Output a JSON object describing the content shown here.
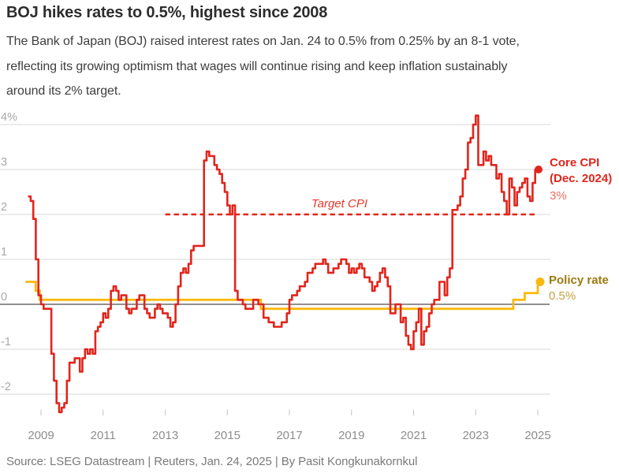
{
  "header": {
    "title": "BOJ hikes rates to 0.5%, highest since 2008",
    "subtitle_lines": [
      "The Bank of Japan (BOJ) raised interest rates on Jan. 24 to 0.5% from 0.25% by an 8-1 vote,",
      "reflecting its growing optimism that wages will continue rising and keep inflation sustainably",
      "around its 2% target."
    ]
  },
  "footer": {
    "source": "Source: LSEG Datastream | Reuters, Jan. 24, 2025 | By Pasit Kongkunakornkul"
  },
  "chart_data": {
    "type": "line",
    "subtype": "step",
    "x_ticks": [
      2009,
      2011,
      2013,
      2015,
      2017,
      2019,
      2021,
      2023,
      2025
    ],
    "y_ticks": [
      {
        "label": "4%",
        "value": 4
      },
      {
        "label": "3",
        "value": 3
      },
      {
        "label": "2",
        "value": 2
      },
      {
        "label": "1",
        "value": 1
      },
      {
        "label": "0",
        "value": 0
      },
      {
        "label": "-1",
        "value": -1
      },
      {
        "label": "-2",
        "value": -2
      }
    ],
    "ylim": [
      -2.6,
      4.4
    ],
    "xlim": [
      2008.4,
      2025.3
    ],
    "grid": "horizontal",
    "legend_position": "right-of-line-ends",
    "target_line": {
      "label": "Target CPI",
      "value": 2,
      "x_start": 2013.0,
      "x_end": 2025.0
    },
    "series": [
      {
        "name": "Core CPI",
        "color": "#e1251c",
        "start_year": 2008,
        "start_month": 8,
        "interval": "monthly",
        "unit": "% yoy",
        "values": [
          2.4,
          2.3,
          1.9,
          1.0,
          0.2,
          0.0,
          -0.1,
          -0.1,
          -0.1,
          -1.1,
          -1.7,
          -2.2,
          -2.4,
          -2.3,
          -2.2,
          -1.7,
          -1.3,
          -1.3,
          -1.2,
          -1.2,
          -1.5,
          -1.2,
          -1.0,
          -1.1,
          -1.0,
          -1.1,
          -0.6,
          -0.5,
          -0.4,
          -0.2,
          -0.3,
          -0.1,
          0.3,
          0.4,
          0.3,
          0.1,
          0.2,
          0.2,
          -0.1,
          -0.2,
          -0.1,
          -0.1,
          0.1,
          0.2,
          0.2,
          -0.1,
          -0.2,
          -0.3,
          -0.3,
          -0.1,
          0.0,
          -0.1,
          -0.2,
          -0.2,
          -0.3,
          -0.5,
          -0.4,
          0.0,
          0.4,
          0.7,
          0.8,
          0.7,
          0.9,
          1.2,
          1.3,
          1.3,
          1.3,
          1.3,
          3.2,
          3.4,
          3.3,
          3.3,
          3.1,
          3.0,
          2.9,
          2.7,
          2.5,
          2.2,
          2.0,
          2.2,
          0.3,
          0.1,
          0.1,
          0.0,
          -0.1,
          -0.1,
          -0.1,
          0.1,
          0.1,
          0.0,
          0.0,
          -0.3,
          -0.3,
          -0.4,
          -0.4,
          -0.5,
          -0.5,
          -0.5,
          -0.4,
          -0.4,
          -0.2,
          0.1,
          0.2,
          0.2,
          0.3,
          0.4,
          0.4,
          0.5,
          0.7,
          0.7,
          0.8,
          0.9,
          0.9,
          0.9,
          1.0,
          0.9,
          0.7,
          0.7,
          0.8,
          0.8,
          0.9,
          1.0,
          1.0,
          0.9,
          0.7,
          0.8,
          0.7,
          0.8,
          0.9,
          0.8,
          0.6,
          0.6,
          0.5,
          0.3,
          0.4,
          0.5,
          0.7,
          0.8,
          0.6,
          0.4,
          -0.2,
          -0.2,
          0.0,
          0.0,
          -0.4,
          -0.3,
          -0.7,
          -0.9,
          -1.0,
          -0.6,
          -0.4,
          -0.1,
          -0.9,
          -0.6,
          -0.5,
          -0.2,
          0.0,
          0.1,
          0.1,
          0.5,
          0.5,
          0.2,
          0.6,
          0.8,
          2.1,
          2.1,
          2.2,
          2.4,
          2.8,
          3.0,
          3.6,
          3.7,
          4.0,
          4.2,
          3.1,
          3.1,
          3.4,
          3.2,
          3.3,
          3.1,
          3.1,
          2.8,
          2.9,
          2.5,
          2.3,
          2.0,
          2.8,
          2.6,
          2.2,
          2.5,
          2.6,
          2.7,
          2.8,
          2.4,
          2.3,
          2.7,
          3.0
        ],
        "end_label": {
          "line1": "Core CPI",
          "line2": "(Dec. 2024)",
          "value": "3%"
        }
      },
      {
        "name": "Policy rate",
        "color": "#fbb80f",
        "unit": "%",
        "points": [
          [
            2008.5,
            0.5
          ],
          [
            2008.83,
            0.3
          ],
          [
            2008.96,
            0.1
          ],
          [
            2016.08,
            -0.1
          ],
          [
            2024.21,
            0.1
          ],
          [
            2024.58,
            0.25
          ],
          [
            2025.0,
            0.5
          ]
        ],
        "end_label": {
          "line1": "Policy rate",
          "value": "0.5%"
        }
      }
    ],
    "colors": {
      "core_line": "#e1251c",
      "core_label_text": "#e1251c",
      "core_value_text": "#ec6e5f",
      "policy_line": "#fbb80f",
      "policy_label_text": "#9c7a10",
      "policy_value_text": "#c4a23f",
      "target_text": "#e5382c",
      "zero_line": "#4d4d4d",
      "gridline": "#dadada",
      "tick_mark": "#c4c4c4",
      "y_axis_text": "#a8a8a8",
      "x_axis_text": "#8d8d8d"
    }
  }
}
